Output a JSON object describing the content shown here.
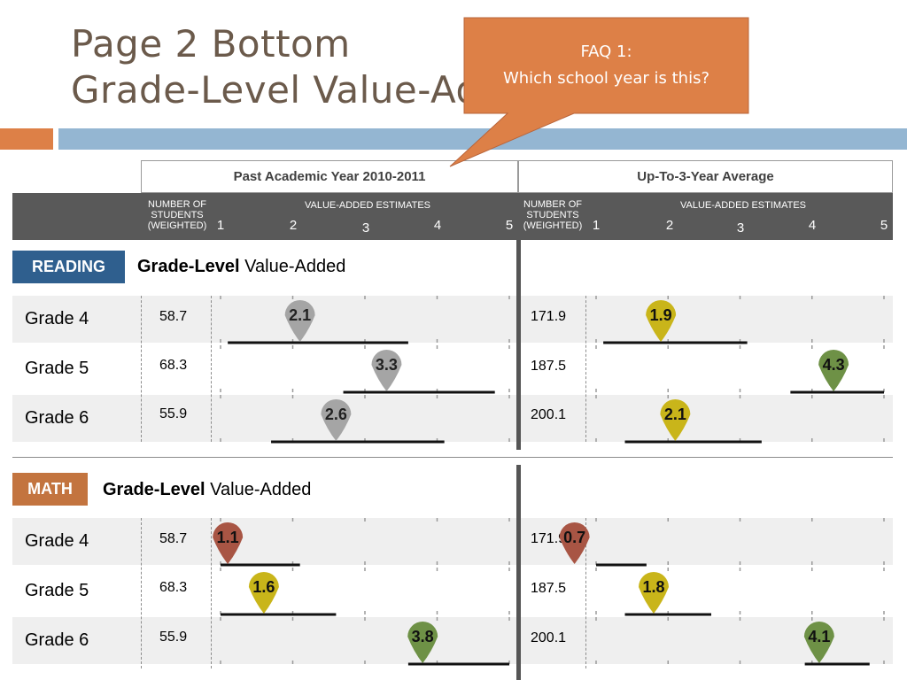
{
  "title": {
    "line1": "Page 2 Bottom",
    "line2": "Grade-Level Value-Added"
  },
  "callout": {
    "line1": "FAQ 1:",
    "line2": "Which school year is this?",
    "fill": "#dd8047"
  },
  "columns": {
    "past": "Past Academic Year 2010-2011",
    "average": "Up-To-3-Year Average"
  },
  "header": {
    "students_label": "NUMBER OF STUDENTS (WEIGHTED)",
    "students_lines": [
      "NUMBER OF",
      "STUDENTS",
      "(WEIGHTED)"
    ],
    "estimates_label": "VALUE-ADDED ESTIMATES",
    "ticks": [
      "1",
      "2",
      "3",
      "4",
      "5"
    ]
  },
  "colors": {
    "gray": "#a5a5a5",
    "yellow": "#c9b51a",
    "green": "#6e9146",
    "red": "#a85544"
  },
  "sections": [
    {
      "tag": "READING",
      "tag_color": "#2f5f8e",
      "title_bold": "Grade-Level",
      "title_rest": "Value-Added",
      "rows": [
        {
          "grade": "Grade 4",
          "past": {
            "n": "58.7",
            "estimate": "2.1",
            "color": "gray",
            "range": [
              1.1,
              3.6
            ]
          },
          "avg": {
            "n": "171.9",
            "estimate": "1.9",
            "color": "yellow",
            "range": [
              1.1,
              3.1
            ]
          }
        },
        {
          "grade": "Grade 5",
          "past": {
            "n": "68.3",
            "estimate": "3.3",
            "color": "gray",
            "range": [
              2.7,
              4.8
            ]
          },
          "avg": {
            "n": "187.5",
            "estimate": "4.3",
            "color": "green",
            "range": [
              3.7,
              5.0
            ]
          }
        },
        {
          "grade": "Grade 6",
          "past": {
            "n": "55.9",
            "estimate": "2.6",
            "color": "gray",
            "range": [
              1.7,
              4.1
            ]
          },
          "avg": {
            "n": "200.1",
            "estimate": "2.1",
            "color": "yellow",
            "range": [
              1.4,
              3.3
            ]
          }
        }
      ]
    },
    {
      "tag": "MATH",
      "tag_color": "#c3743f",
      "title_bold": "Grade-Level",
      "title_rest": "Value-Added",
      "rows": [
        {
          "grade": "Grade 4",
          "past": {
            "n": "58.7",
            "estimate": "1.1",
            "color": "red",
            "range": [
              1.0,
              2.1
            ]
          },
          "avg": {
            "n": "171.9",
            "estimate": "0.7",
            "color": "red",
            "range": [
              1.0,
              1.7
            ]
          }
        },
        {
          "grade": "Grade 5",
          "past": {
            "n": "68.3",
            "estimate": "1.6",
            "color": "yellow",
            "range": [
              1.0,
              2.6
            ]
          },
          "avg": {
            "n": "187.5",
            "estimate": "1.8",
            "color": "yellow",
            "range": [
              1.4,
              2.6
            ]
          }
        },
        {
          "grade": "Grade 6",
          "past": {
            "n": "55.9",
            "estimate": "3.8",
            "color": "green",
            "range": [
              3.6,
              5.0
            ]
          },
          "avg": {
            "n": "200.1",
            "estimate": "4.1",
            "color": "green",
            "range": [
              3.9,
              4.8
            ]
          }
        }
      ]
    }
  ]
}
